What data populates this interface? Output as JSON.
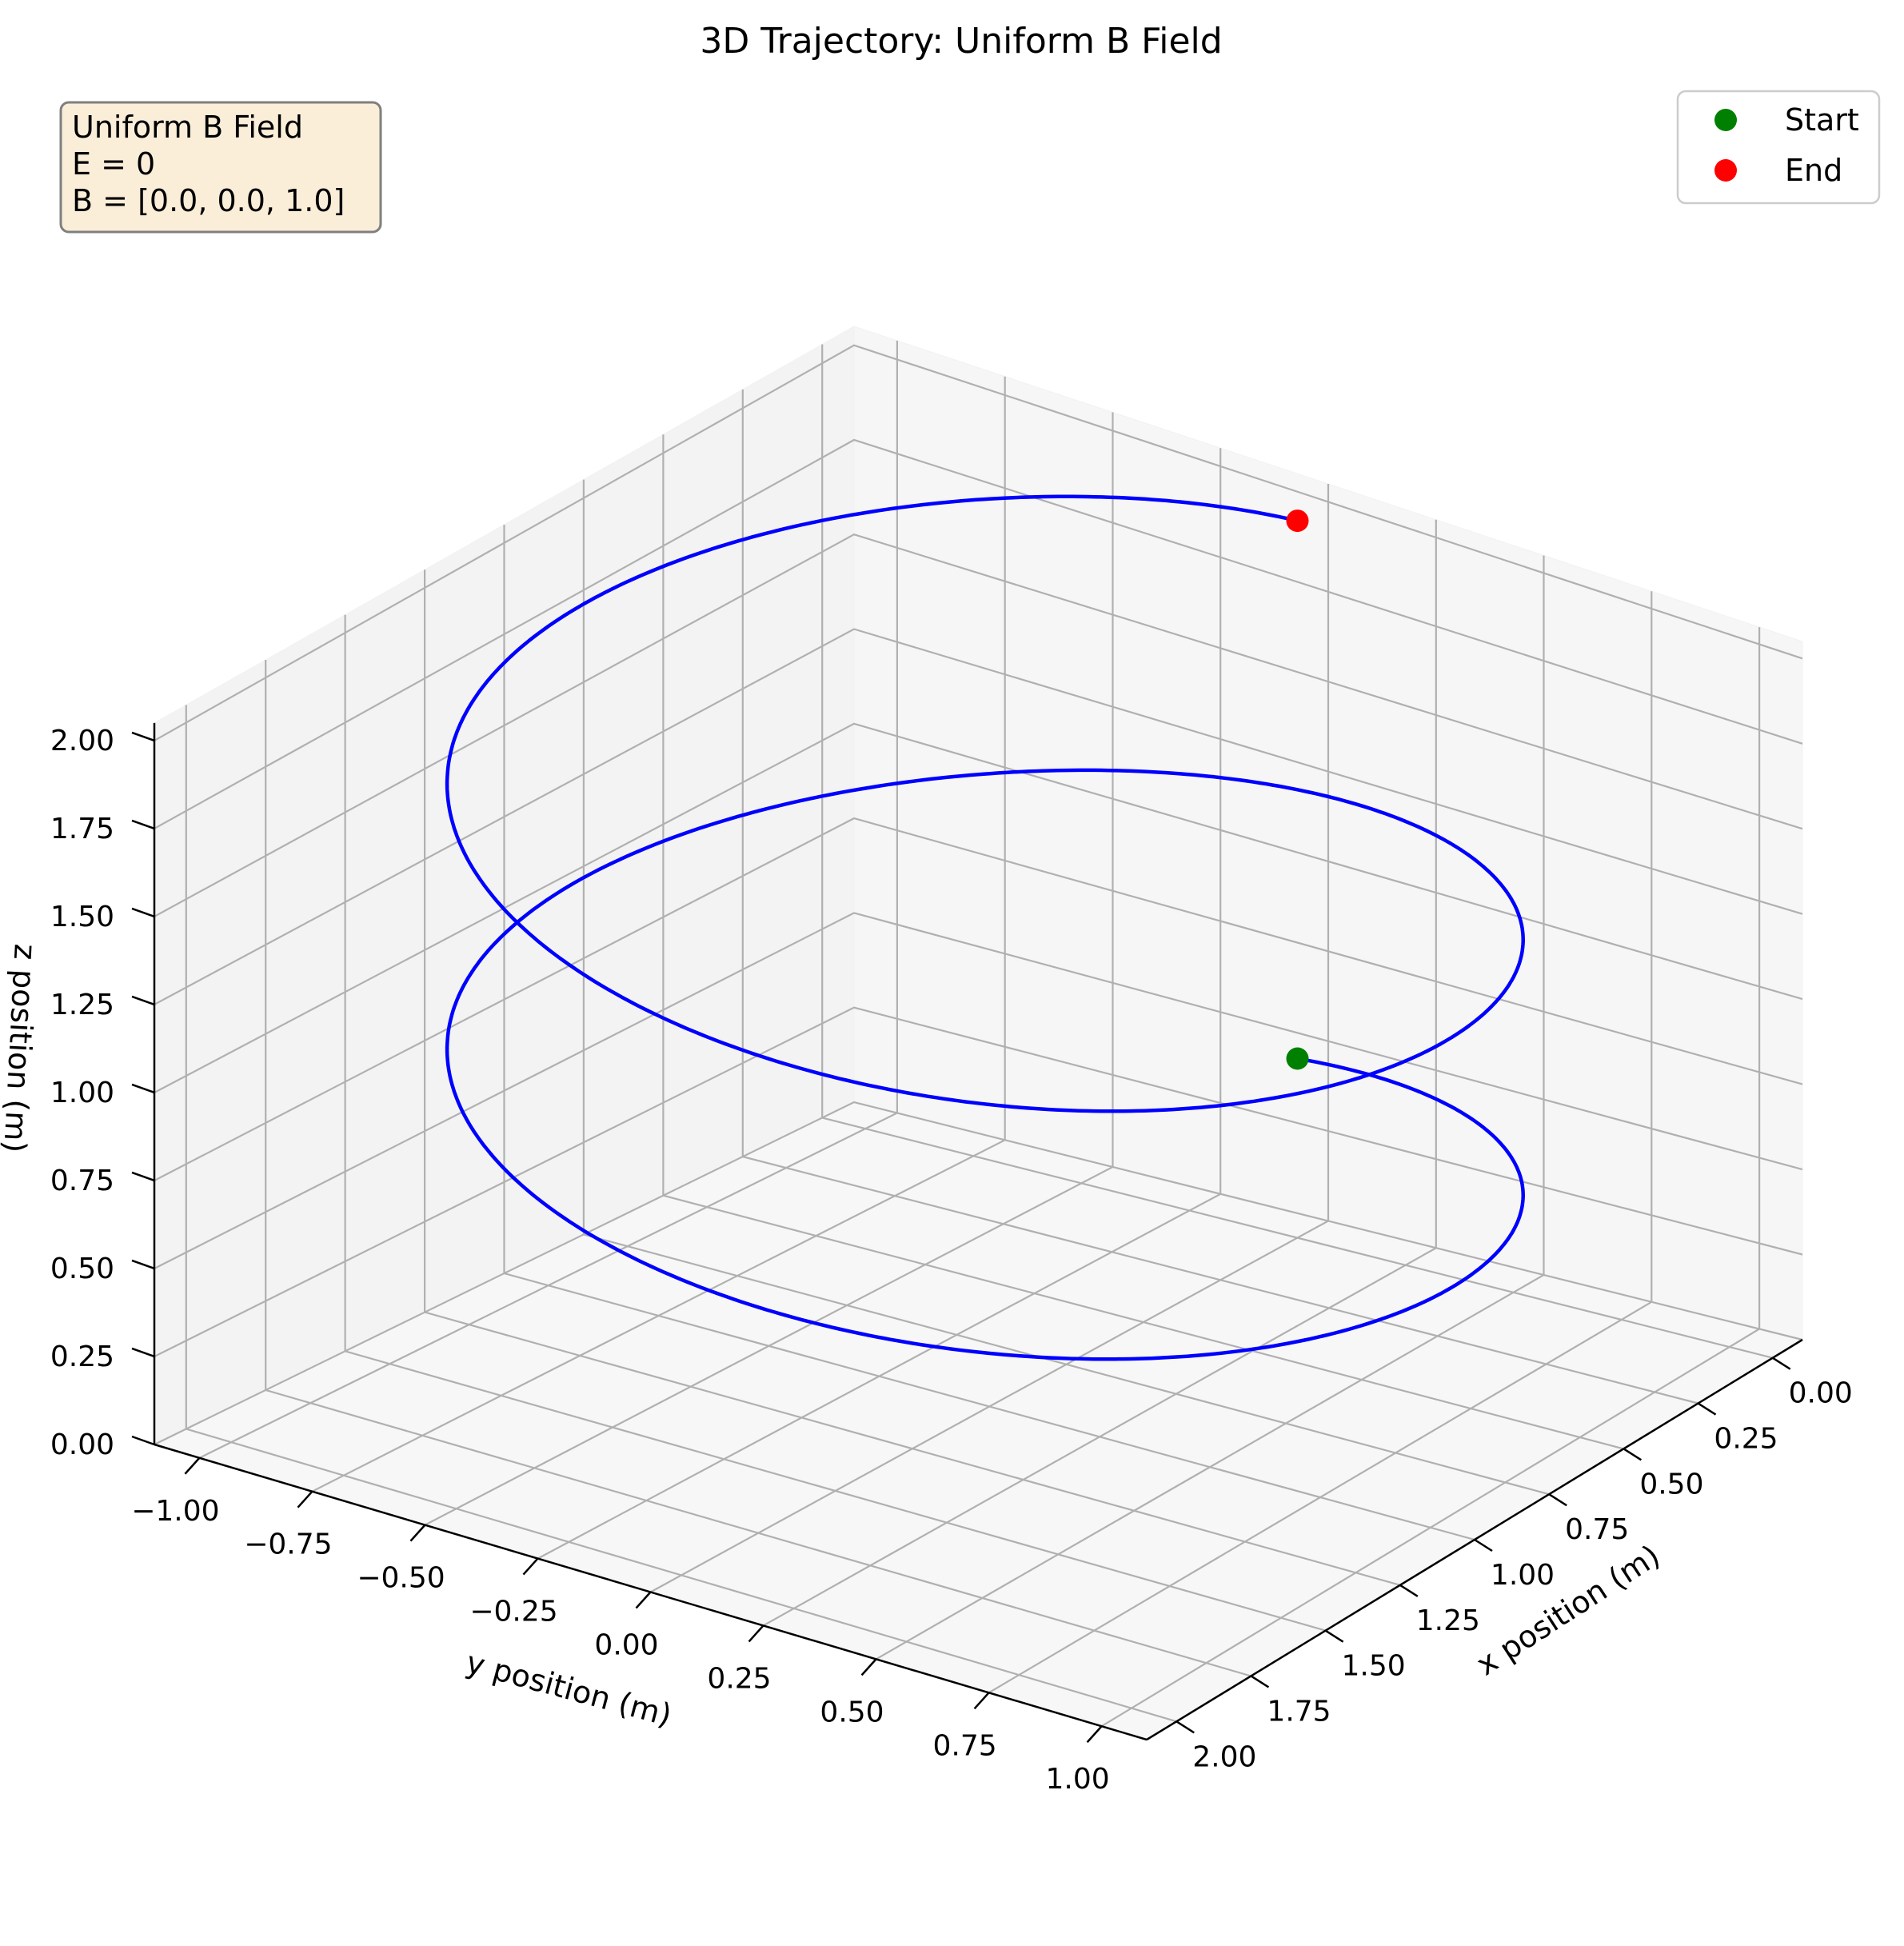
{
  "chart_data": {
    "type": "line",
    "projection": "3d",
    "title": "3D Trajectory: Uniform B Field",
    "xlabel": "x position (m)",
    "ylabel": "y position (m)",
    "zlabel": "z position (m)",
    "xlim": [
      -0.1,
      2.1
    ],
    "ylim": [
      -1.1,
      1.1
    ],
    "zlim": [
      0,
      2.05
    ],
    "x_ticks": [
      "0.00",
      "0.25",
      "0.50",
      "0.75",
      "1.00",
      "1.25",
      "1.50",
      "1.75",
      "2.00"
    ],
    "y_ticks": [
      "−1.00",
      "−0.75",
      "−0.50",
      "−0.25",
      "0.00",
      "0.25",
      "0.50",
      "0.75",
      "1.00"
    ],
    "z_ticks": [
      "0.00",
      "0.25",
      "0.50",
      "0.75",
      "1.00",
      "1.25",
      "1.50",
      "1.75",
      "2.00"
    ],
    "grid": true,
    "series": [
      {
        "kind": "helix",
        "color": "#0000ff",
        "x_center": 1.0,
        "y_center": 0.0,
        "radius": 1.0,
        "turns": 2,
        "z_start": 0.5,
        "z_end": 2.0,
        "x_start": 0.0,
        "y_start": 0.0
      }
    ],
    "markers": [
      {
        "name": "Start",
        "color": "#008000",
        "x": 0.0,
        "y": 0.0,
        "z": 0.5
      },
      {
        "name": "End",
        "color": "#ff0000",
        "x": 0.0,
        "y": 0.0,
        "z": 2.0
      }
    ],
    "legend": {
      "placement": "top-right",
      "entries": [
        "Start",
        "End"
      ]
    },
    "annotation": {
      "placement": "top-left",
      "lines": [
        "Uniform B Field",
        "E = 0",
        "B = [0.0, 0.0, 1.0]"
      ]
    }
  }
}
